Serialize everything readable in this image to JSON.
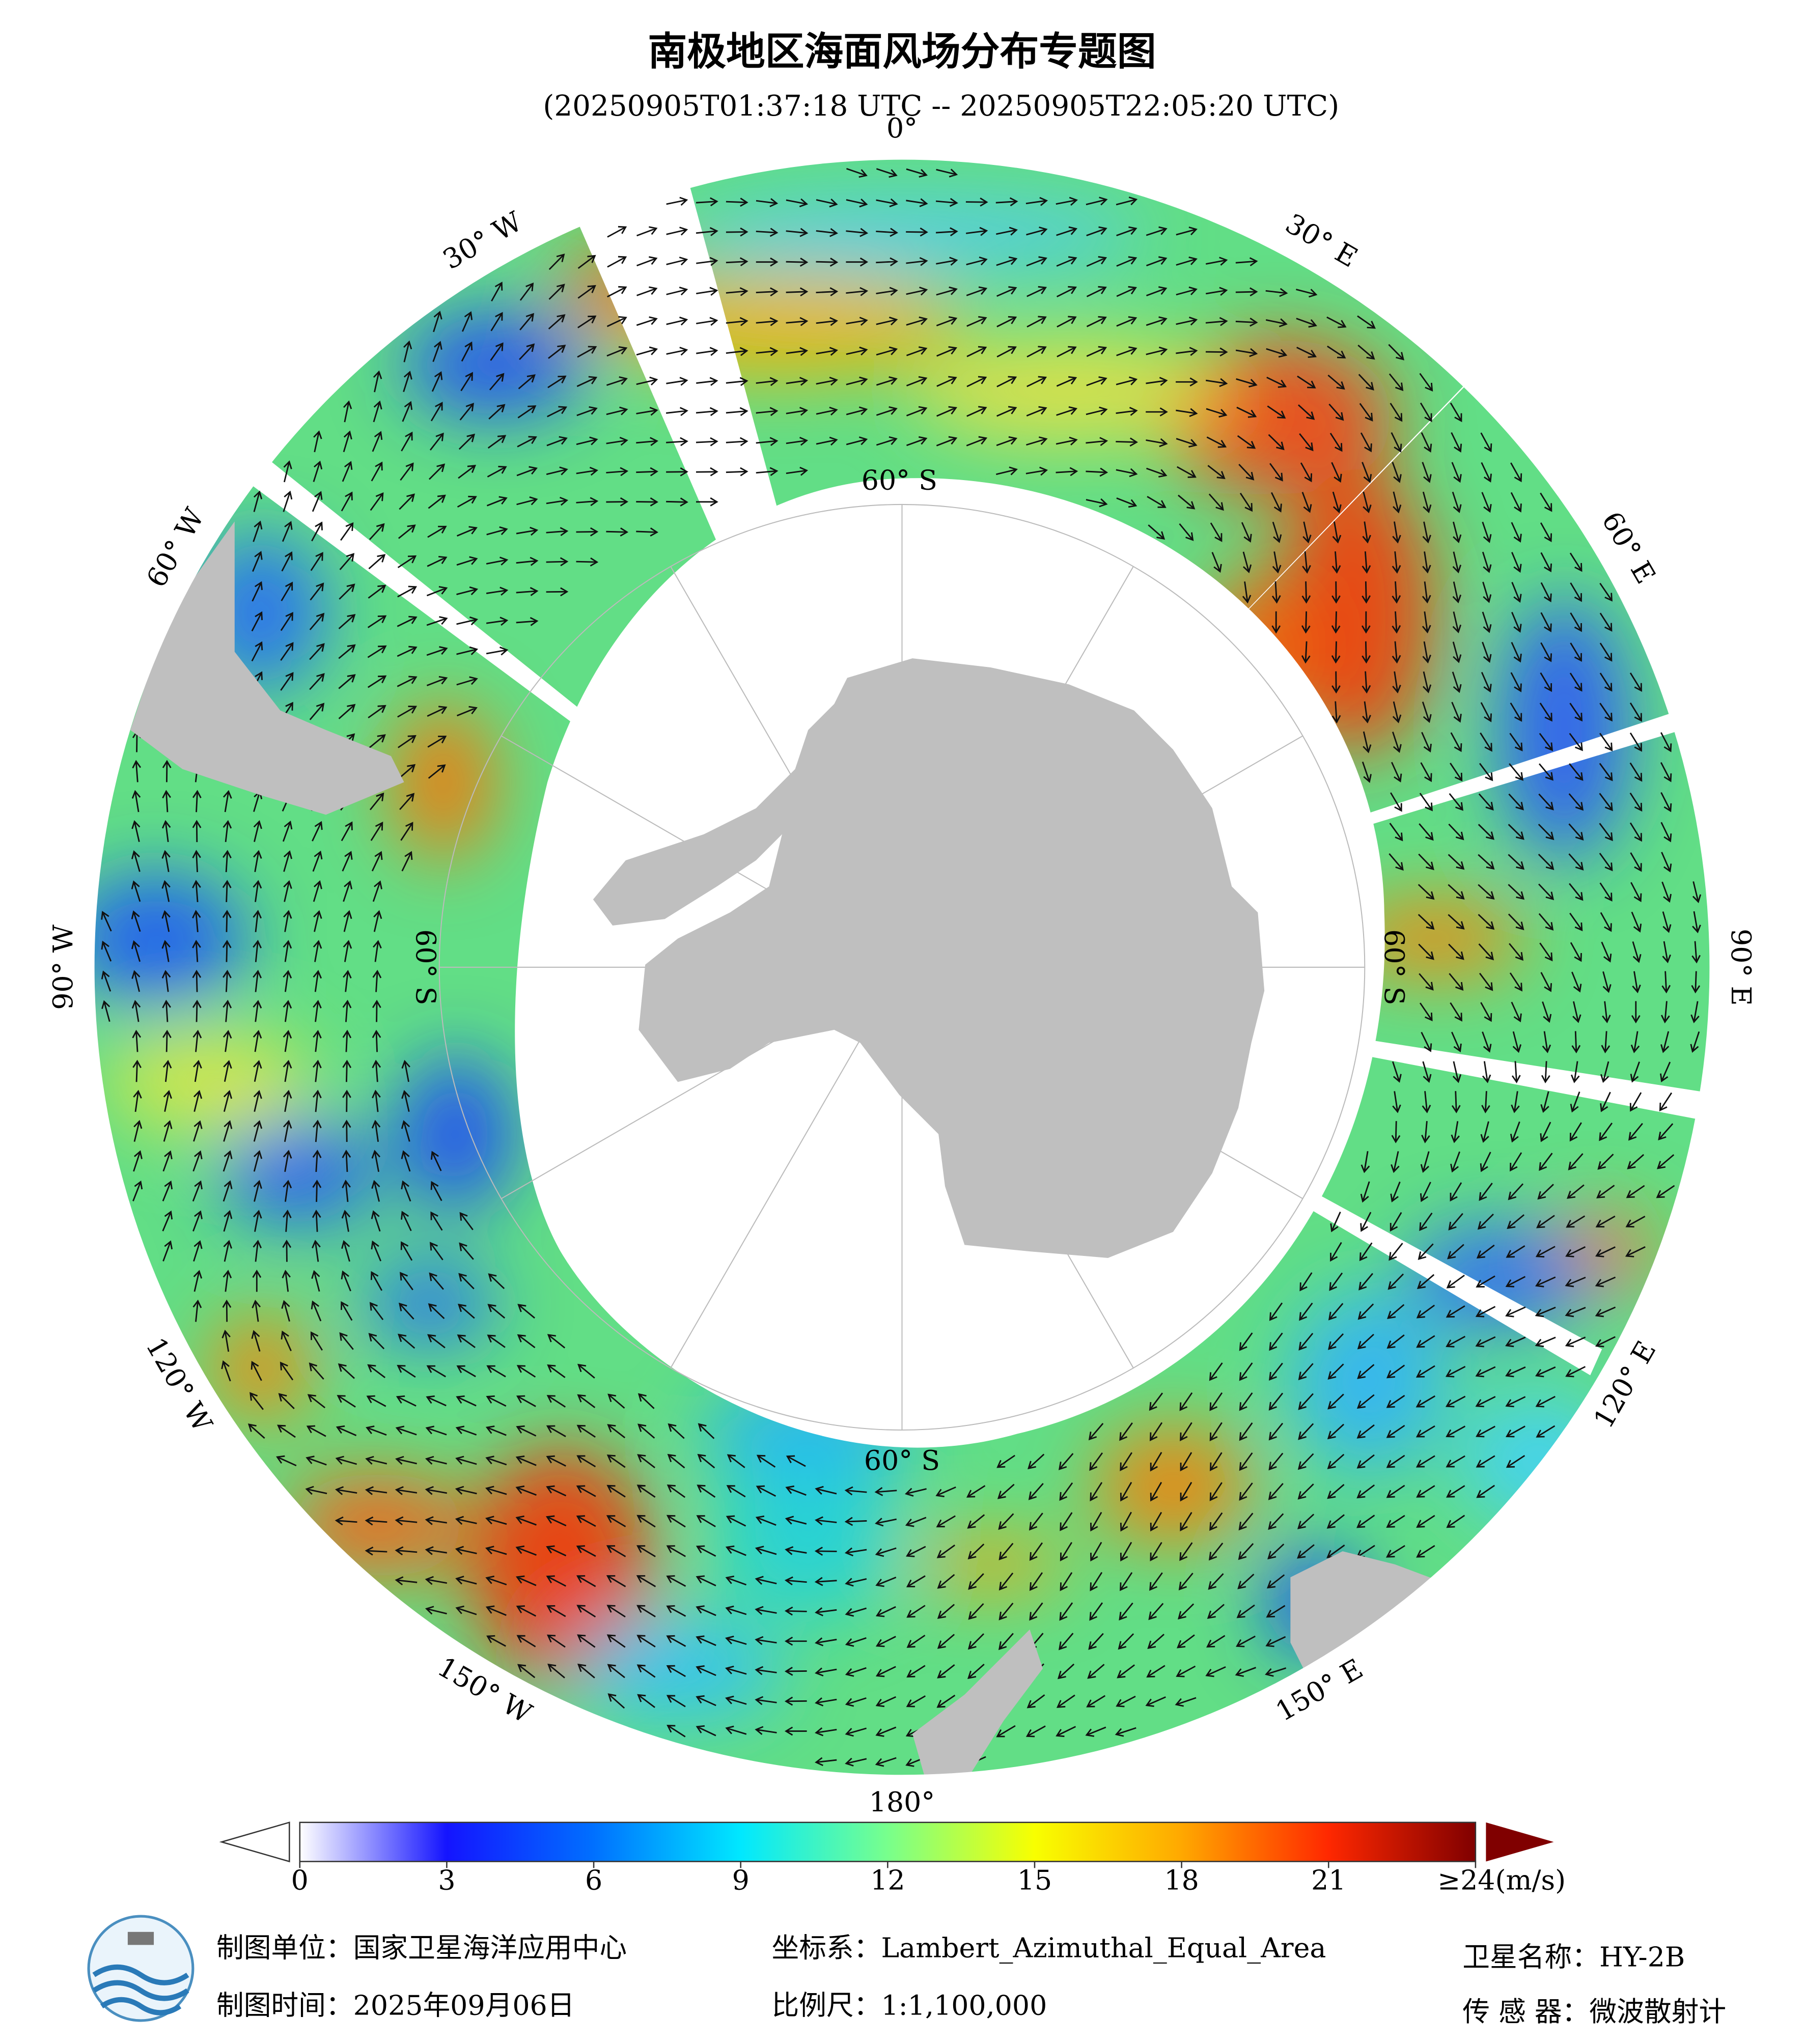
{
  "title": "南极地区海面风场分布专题图",
  "subtitle": "(20250905T01:37:18 UTC -- 20250905T22:05:20 UTC)",
  "map": {
    "longitude_labels": [
      "0°",
      "30° E",
      "60° E",
      "90° E",
      "120° E",
      "150° E",
      "180°",
      "150° W",
      "120° W",
      "90° W",
      "60° W",
      "30° W"
    ],
    "latitude_label": "60° S"
  },
  "colorbar": {
    "range": [
      0,
      24
    ],
    "ticks": [
      0,
      3,
      6,
      9,
      12,
      15,
      18,
      21,
      {
        "value": 24,
        "label": "≥24(m/s)"
      }
    ],
    "colors": [
      "#ffffff",
      "#1414ff",
      "#0070ff",
      "#00e8ff",
      "#78ff8c",
      "#f8ff00",
      "#ffa800",
      "#ff2800",
      "#800000"
    ]
  },
  "footer": {
    "unit": "制图单位：国家卫星海洋应用中心",
    "time": "制图时间：2025年09月06日",
    "crs": "坐标系：Lambert_Azimuthal_Equal_Area",
    "scale": "比例尺：1:1,100,000",
    "satellite": "卫星名称：HY-2B",
    "sensor": "传 感 器：微波散射计"
  }
}
